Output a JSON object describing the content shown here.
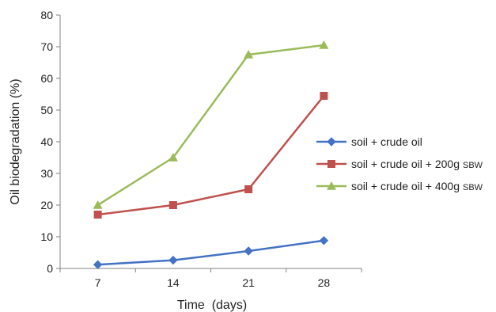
{
  "chart_data": {
    "type": "line",
    "title": "",
    "xlabel": "Time  (days)",
    "ylabel": "Oil biodegradation (%)",
    "x": [
      7,
      14,
      21,
      28
    ],
    "xticks": [
      "7",
      "14",
      "21",
      "28"
    ],
    "ylim": [
      0,
      80
    ],
    "yticks": [
      0,
      10,
      20,
      30,
      40,
      50,
      60,
      70,
      80
    ],
    "grid": false,
    "legend_position": "right",
    "series": [
      {
        "name": "soil + crude oil",
        "name_main": "soil + crude oil",
        "name_sub": "",
        "values": [
          1.2,
          2.6,
          5.5,
          8.8
        ],
        "color": "#4472C4",
        "marker": "diamond"
      },
      {
        "name": "soil + crude oil + 200g SBW",
        "name_main": "soil + crude oil + 200g",
        "name_sub": "SBW",
        "values": [
          17,
          20,
          25,
          54.5
        ],
        "color": "#C0504D",
        "marker": "square"
      },
      {
        "name": "soil + crude oil + 400g SBW",
        "name_main": "soil + crude oil + 400g",
        "name_sub": "SBW",
        "values": [
          20,
          35,
          67.5,
          70.5
        ],
        "color": "#9BBB59",
        "marker": "triangle"
      }
    ]
  }
}
